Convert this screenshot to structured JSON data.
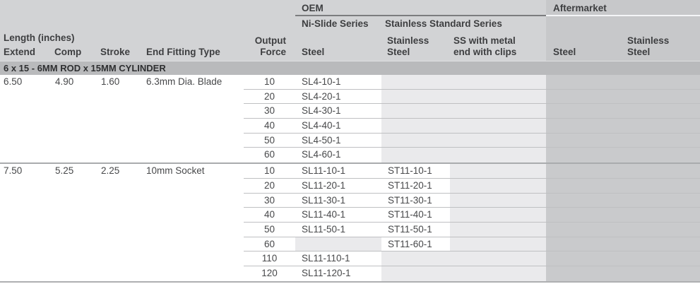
{
  "colors": {
    "header_bg": "#d2d3d5",
    "aftermarket_bg": "#c7c8ca",
    "section_band_bg": "#b9babc",
    "empty_cell_bg": "#eaeaec",
    "filled_cell_bg": "#ffffff",
    "aftermarket_body_bg": "#c9cacc",
    "text": "#3d3e40"
  },
  "header": {
    "oem_group": "OEM",
    "aftermarket_group": "Aftermarket",
    "ni_slide_series": "Ni-Slide Series",
    "stainless_standard_series": "Stainless Standard Series",
    "length_inches": "Length (inches)",
    "columns": {
      "extend": "Extend",
      "comp": "Comp",
      "stroke": "Stroke",
      "end_fitting_type": "End Fitting Type",
      "output_force": "Output\nForce",
      "oem_steel": "Steel",
      "stainless_steel": "Stainless\nSteel",
      "ss_with_clips": "SS with metal\nend with clips",
      "aftermarket_steel": "Steel",
      "aftermarket_stainless": "Stainless\nSteel"
    }
  },
  "section": {
    "title": "6 x 15 - 6MM ROD x 15MM CYLINDER"
  },
  "groups": [
    {
      "extend": "6.50",
      "comp": "4.90",
      "stroke": "1.60",
      "end_fitting": "6.3mm Dia. Blade",
      "rows": [
        {
          "force": "10",
          "oem_steel": "SL4-10-1",
          "stainless_steel": "",
          "ss_with_clips": ""
        },
        {
          "force": "20",
          "oem_steel": "SL4-20-1",
          "stainless_steel": "",
          "ss_with_clips": ""
        },
        {
          "force": "30",
          "oem_steel": "SL4-30-1",
          "stainless_steel": "",
          "ss_with_clips": ""
        },
        {
          "force": "40",
          "oem_steel": "SL4-40-1",
          "stainless_steel": "",
          "ss_with_clips": ""
        },
        {
          "force": "50",
          "oem_steel": "SL4-50-1",
          "stainless_steel": "",
          "ss_with_clips": ""
        },
        {
          "force": "60",
          "oem_steel": "SL4-60-1",
          "stainless_steel": "",
          "ss_with_clips": ""
        }
      ]
    },
    {
      "extend": "7.50",
      "comp": "5.25",
      "stroke": "2.25",
      "end_fitting": "10mm Socket",
      "rows": [
        {
          "force": "10",
          "oem_steel": "SL11-10-1",
          "stainless_steel": "ST11-10-1",
          "ss_with_clips": ""
        },
        {
          "force": "20",
          "oem_steel": "SL11-20-1",
          "stainless_steel": "ST11-20-1",
          "ss_with_clips": ""
        },
        {
          "force": "30",
          "oem_steel": "SL11-30-1",
          "stainless_steel": "ST11-30-1",
          "ss_with_clips": ""
        },
        {
          "force": "40",
          "oem_steel": "SL11-40-1",
          "stainless_steel": "ST11-40-1",
          "ss_with_clips": ""
        },
        {
          "force": "50",
          "oem_steel": "SL11-50-1",
          "stainless_steel": "ST11-50-1",
          "ss_with_clips": ""
        },
        {
          "force": "60",
          "oem_steel": "",
          "stainless_steel": "ST11-60-1",
          "ss_with_clips": ""
        },
        {
          "force": "110",
          "oem_steel": "SL11-110-1",
          "stainless_steel": "",
          "ss_with_clips": ""
        },
        {
          "force": "120",
          "oem_steel": "SL11-120-1",
          "stainless_steel": "",
          "ss_with_clips": ""
        }
      ]
    }
  ]
}
